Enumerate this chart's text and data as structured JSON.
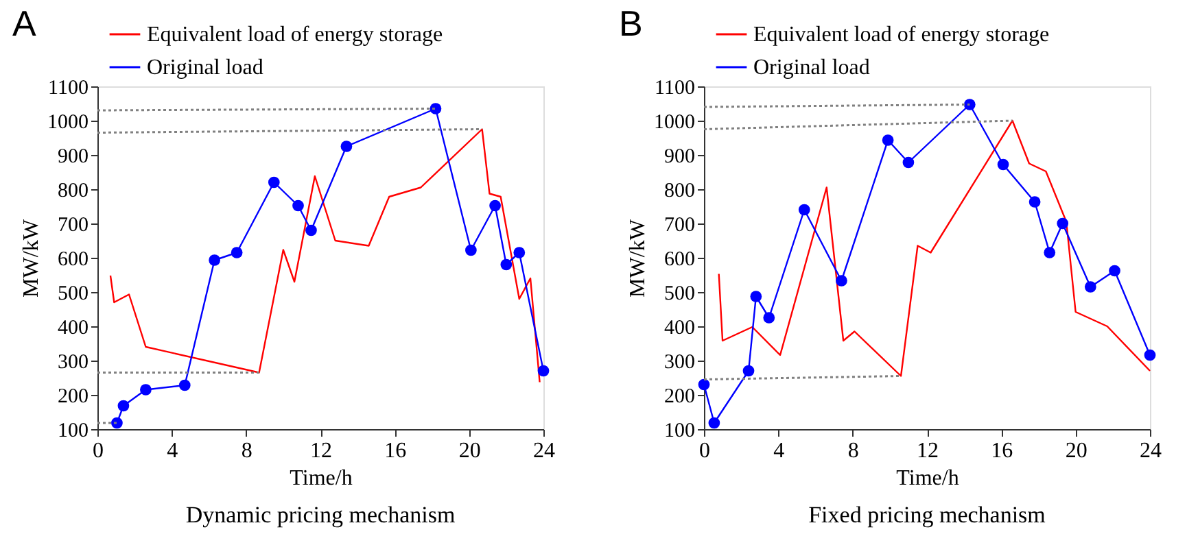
{
  "chart_data": [
    {
      "type": "line",
      "title": "Dynamic pricing mechanism",
      "annotations": [
        "A"
      ],
      "xlabel": "Time/h",
      "ylabel": "MW/kW",
      "xlim": [
        0,
        24
      ],
      "xticks": [
        0,
        4,
        8,
        12,
        16,
        20,
        24
      ],
      "ylim": [
        100,
        1100
      ],
      "yticks": [
        100,
        200,
        300,
        400,
        500,
        600,
        700,
        800,
        900,
        1000,
        1100
      ],
      "grid": false,
      "legend": "top left",
      "series": [
        {
          "name": "Equivalent load of energy storage",
          "color": "#ff0000",
          "marker": "none",
          "x": [
            0.7,
            0.9,
            1.7,
            2.6,
            8.7,
            10.0,
            10.6,
            11.7,
            12.8,
            14.6,
            15.7,
            17.4,
            20.7,
            21.1,
            21.7,
            22.7,
            23.3,
            23.8
          ],
          "values": [
            548,
            470,
            493,
            340,
            265,
            623,
            530,
            838,
            650,
            635,
            778,
            805,
            975,
            787,
            778,
            480,
            540,
            237
          ]
        },
        {
          "name": "Original load",
          "color": "#0000ff",
          "marker": "circle",
          "x": [
            1.05,
            1.4,
            2.6,
            4.7,
            6.3,
            7.5,
            9.5,
            10.8,
            11.5,
            13.4,
            18.2,
            20.1,
            21.4,
            22.0,
            22.7,
            24.0
          ],
          "values": [
            118,
            168,
            215,
            228,
            593,
            615,
            820,
            752,
            680,
            925,
            1035,
            622,
            752,
            580,
            615,
            270
          ]
        },
        {
          "color": "#808080",
          "marker": "none",
          "line_style": "dotted",
          "x": [
            0,
            18.2
          ],
          "values": [
            1030,
            1035
          ]
        },
        {
          "color": "#808080",
          "marker": "none",
          "line_style": "dotted",
          "x": [
            0,
            20.7
          ],
          "values": [
            965,
            975
          ]
        },
        {
          "color": "#808080",
          "marker": "none",
          "line_style": "dotted",
          "x": [
            0,
            8.7
          ],
          "values": [
            265,
            265
          ]
        },
        {
          "color": "#808080",
          "marker": "none",
          "line_style": "dotted",
          "x": [
            0,
            1.05
          ],
          "values": [
            118,
            118
          ]
        }
      ]
    },
    {
      "type": "line",
      "title": "Fixed pricing mechanism",
      "annotations": [
        "B"
      ],
      "xlabel": "Time/h",
      "ylabel": "MW/kW",
      "xlim": [
        0,
        24
      ],
      "xticks": [
        0,
        4,
        8,
        12,
        16,
        20,
        24
      ],
      "ylim": [
        100,
        1100
      ],
      "yticks": [
        100,
        200,
        300,
        400,
        500,
        600,
        700,
        800,
        900,
        1000,
        1100
      ],
      "grid": false,
      "legend": "top left",
      "series": [
        {
          "name": "Equivalent load of energy storage",
          "color": "#ff0000",
          "marker": "none",
          "x": [
            0.8,
            1.0,
            2.6,
            4.1,
            6.6,
            7.5,
            8.1,
            10.6,
            11.5,
            12.2,
            16.6,
            17.5,
            18.4,
            19.5,
            20.0,
            21.7,
            24.0
          ],
          "values": [
            553,
            358,
            398,
            316,
            805,
            358,
            385,
            255,
            635,
            615,
            1000,
            875,
            852,
            705,
            442,
            400,
            270
          ]
        },
        {
          "name": "Original load",
          "color": "#0000ff",
          "marker": "circle",
          "x": [
            0,
            0.55,
            2.4,
            2.8,
            3.5,
            5.4,
            7.4,
            9.9,
            11.0,
            14.3,
            16.1,
            17.8,
            18.6,
            19.3,
            20.8,
            22.1,
            24.0
          ],
          "values": [
            230,
            118,
            270,
            487,
            425,
            740,
            533,
            943,
            878,
            1047,
            872,
            763,
            615,
            700,
            515,
            562,
            316
          ]
        },
        {
          "color": "#808080",
          "marker": "none",
          "line_style": "dotted",
          "x": [
            0,
            14.3
          ],
          "values": [
            1040,
            1047
          ]
        },
        {
          "color": "#808080",
          "marker": "none",
          "line_style": "dotted",
          "x": [
            0,
            16.6
          ],
          "values": [
            975,
            1000
          ]
        },
        {
          "color": "#808080",
          "marker": "none",
          "line_style": "dotted",
          "x": [
            0,
            10.6
          ],
          "values": [
            245,
            255
          ]
        }
      ]
    }
  ]
}
